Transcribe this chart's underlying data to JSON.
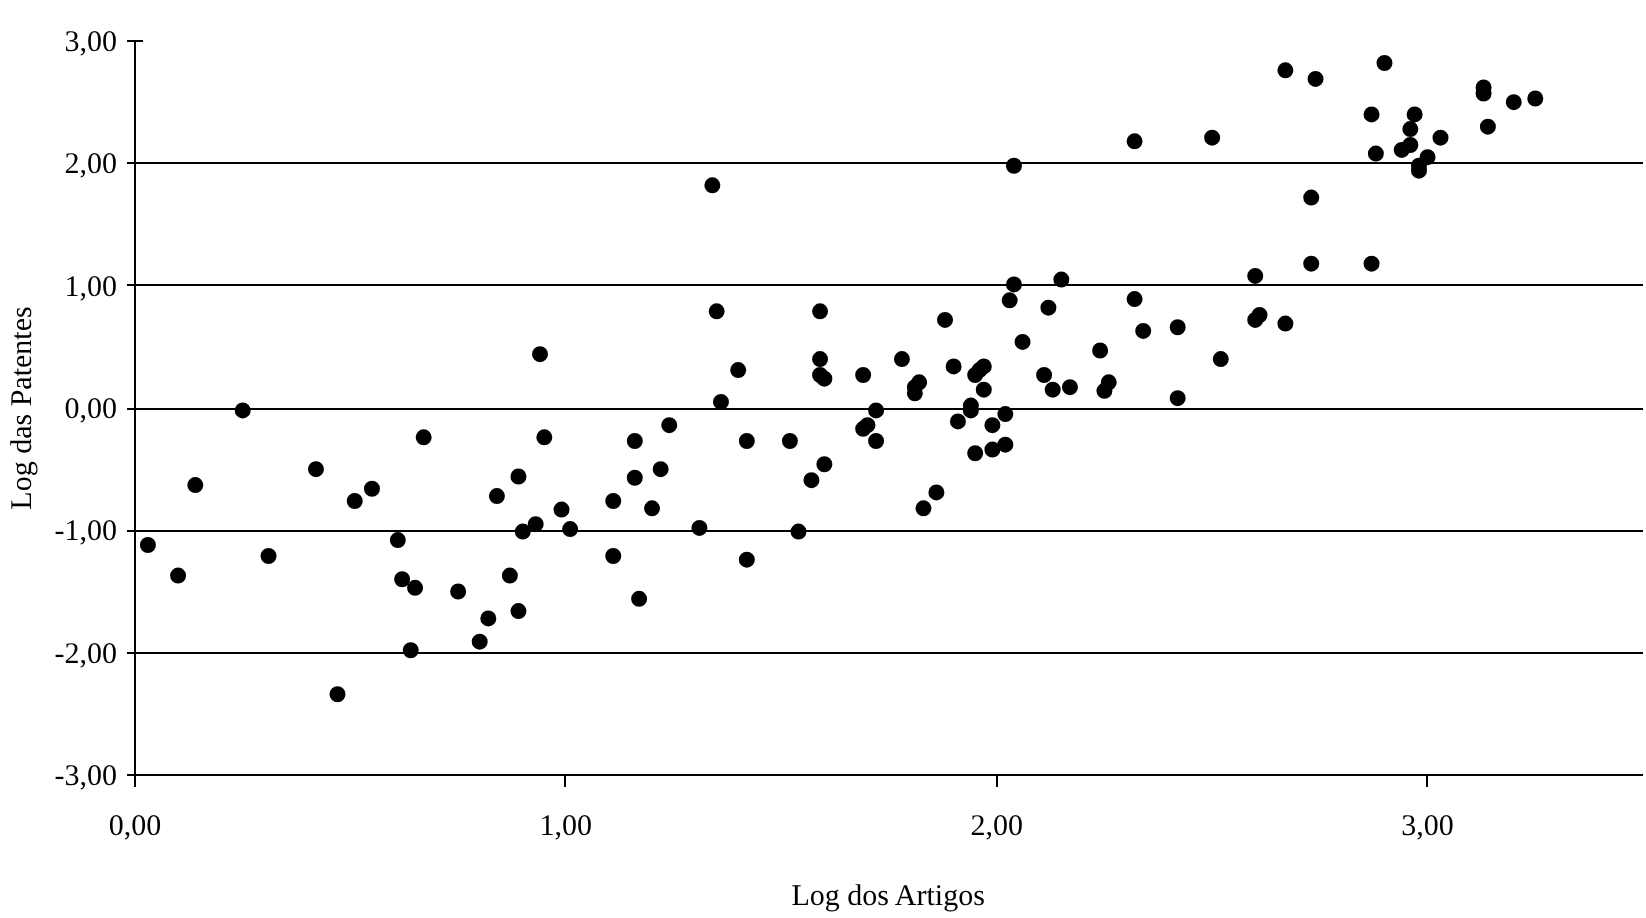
{
  "chart_data": {
    "type": "scatter",
    "xlabel": "Log dos Artigos",
    "ylabel": "Log das Patentes",
    "xlim": [
      0,
      3.5
    ],
    "ylim": [
      -3,
      3
    ],
    "xticks": [
      {
        "value": 0,
        "label": "0,00"
      },
      {
        "value": 1,
        "label": "1,00"
      },
      {
        "value": 2,
        "label": "2,00"
      },
      {
        "value": 3,
        "label": "3,00"
      }
    ],
    "yticks": [
      {
        "value": -3,
        "label": "-3,00"
      },
      {
        "value": -2,
        "label": "-2,00"
      },
      {
        "value": -1,
        "label": "-1,00"
      },
      {
        "value": 0,
        "label": "0,00"
      },
      {
        "value": 1,
        "label": "1,00"
      },
      {
        "value": 2,
        "label": "2,00"
      },
      {
        "value": 3,
        "label": "3,00"
      }
    ],
    "grid": "y",
    "marker": "circle",
    "series": [
      {
        "color": "#000000",
        "x": [
          0.03,
          0.1,
          0.14,
          0.25,
          0.31,
          0.42,
          0.47,
          0.51,
          0.55,
          0.61,
          0.62,
          0.65,
          0.64,
          0.67,
          0.75,
          0.8,
          0.82,
          0.84,
          0.87,
          0.89,
          0.9,
          0.89,
          0.94,
          0.95,
          0.93,
          0.99,
          1.01,
          1.11,
          1.11,
          1.16,
          1.16,
          1.17,
          1.2,
          1.22,
          1.24,
          1.31,
          1.34,
          1.35,
          1.36,
          1.4,
          1.42,
          1.42,
          1.52,
          1.54,
          1.57,
          1.59,
          1.59,
          1.59,
          1.6,
          1.6,
          1.69,
          1.69,
          1.7,
          1.72,
          1.72,
          1.78,
          1.81,
          1.81,
          1.82,
          1.83,
          1.86,
          1.88,
          1.9,
          1.91,
          1.94,
          1.94,
          1.95,
          1.96,
          1.97,
          1.97,
          1.95,
          1.99,
          1.99,
          2.02,
          2.02,
          2.03,
          2.04,
          2.04,
          2.06,
          2.11,
          2.12,
          2.13,
          2.15,
          2.17,
          2.24,
          2.25,
          2.26,
          2.32,
          2.32,
          2.34,
          2.42,
          2.42,
          2.5,
          2.52,
          2.6,
          2.6,
          2.61,
          2.67,
          2.67,
          2.73,
          2.73,
          2.74,
          2.87,
          2.87,
          2.88,
          2.9,
          2.94,
          2.96,
          2.96,
          2.97,
          2.98,
          2.98,
          3.0,
          3.03,
          3.13,
          3.13,
          3.14,
          3.2,
          3.25
        ],
        "values": [
          -1.12,
          -1.37,
          -0.63,
          -0.02,
          -1.21,
          -0.5,
          -2.34,
          -0.76,
          -0.66,
          -1.08,
          -1.4,
          -1.47,
          -1.98,
          -0.24,
          -1.5,
          -1.91,
          -1.72,
          -0.72,
          -1.37,
          -0.56,
          -1.01,
          -1.66,
          0.44,
          -0.24,
          -0.95,
          -0.83,
          -0.99,
          -0.76,
          -1.21,
          -0.27,
          -0.57,
          -1.56,
          -0.82,
          -0.5,
          -0.14,
          -0.98,
          1.82,
          0.79,
          0.05,
          0.31,
          -0.27,
          -1.24,
          -0.27,
          -1.01,
          -0.59,
          0.79,
          0.4,
          0.27,
          0.24,
          -0.46,
          0.27,
          -0.17,
          -0.14,
          -0.02,
          -0.27,
          0.4,
          0.12,
          0.17,
          0.21,
          -0.82,
          -0.69,
          0.72,
          0.34,
          -0.11,
          0.02,
          -0.02,
          0.27,
          0.31,
          0.34,
          0.15,
          -0.37,
          -0.14,
          -0.34,
          -0.3,
          -0.05,
          0.88,
          1.01,
          1.98,
          0.54,
          0.27,
          0.82,
          0.15,
          1.05,
          0.17,
          0.47,
          0.14,
          0.21,
          2.18,
          0.89,
          0.63,
          0.66,
          0.08,
          2.21,
          0.4,
          1.08,
          0.72,
          0.76,
          0.69,
          2.76,
          1.72,
          1.18,
          2.69,
          1.18,
          2.4,
          2.08,
          2.82,
          2.11,
          2.15,
          2.28,
          2.4,
          1.98,
          1.94,
          2.05,
          2.21,
          2.62,
          2.57,
          2.3,
          2.5,
          2.53
        ]
      }
    ]
  }
}
